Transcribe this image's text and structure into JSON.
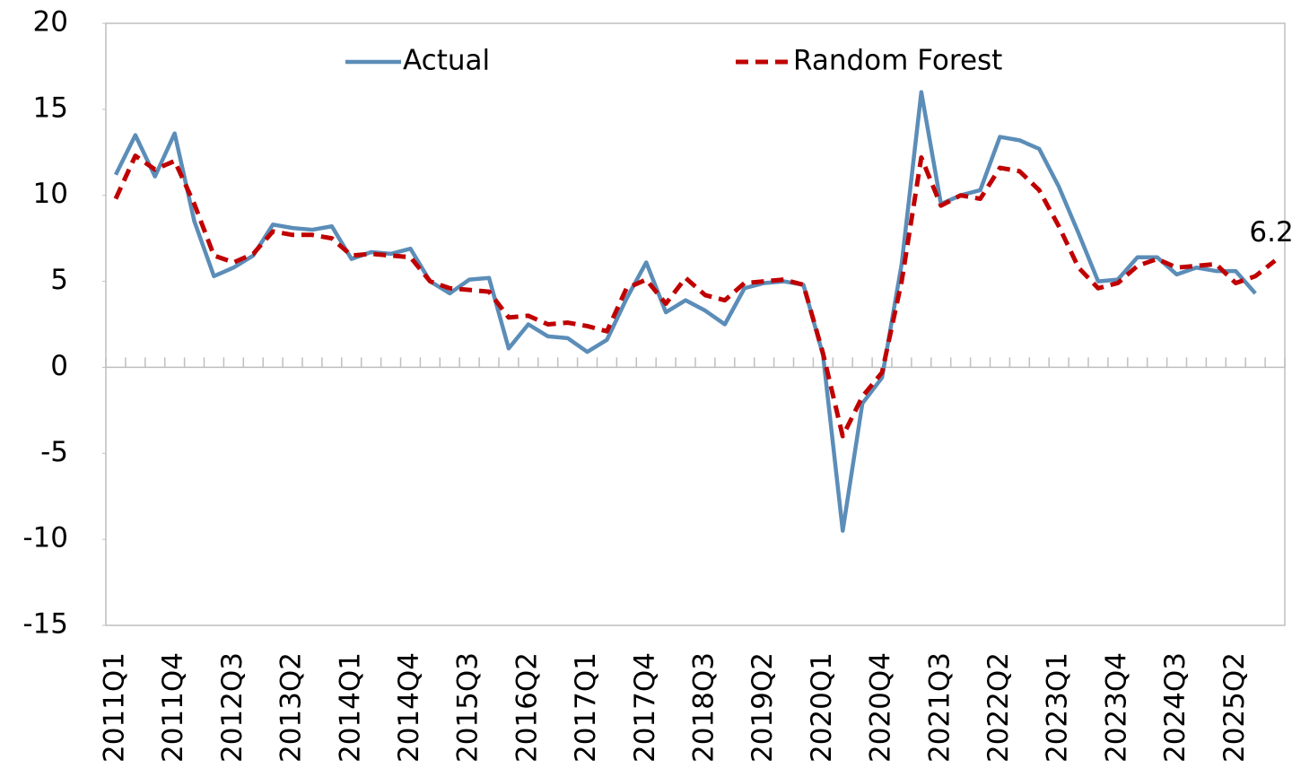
{
  "chart_data": {
    "type": "line",
    "categories": [
      "2011Q1",
      null,
      null,
      "2011Q4",
      null,
      null,
      "2012Q3",
      null,
      null,
      "2013Q2",
      null,
      null,
      "2014Q1",
      null,
      null,
      "2014Q4",
      null,
      null,
      "2015Q3",
      null,
      null,
      "2016Q2",
      null,
      null,
      "2017Q1",
      null,
      null,
      "2017Q4",
      null,
      null,
      "2018Q3",
      null,
      null,
      "2019Q2",
      null,
      null,
      "2020Q1",
      null,
      null,
      "2020Q4",
      null,
      null,
      "2021Q3",
      null,
      null,
      "2022Q2",
      null,
      null,
      "2023Q1",
      null,
      null,
      "2023Q4",
      null,
      null,
      "2024Q3",
      null,
      null,
      "2025Q2",
      null,
      null
    ],
    "series": [
      {
        "name": "Actual",
        "color": "#5b8db8",
        "dash": false,
        "values": [
          11.2,
          13.5,
          11.1,
          13.6,
          8.5,
          5.3,
          5.8,
          6.5,
          8.3,
          8.1,
          8.0,
          8.2,
          6.3,
          6.7,
          6.6,
          6.9,
          5.0,
          4.3,
          5.1,
          5.2,
          1.1,
          2.5,
          1.8,
          1.7,
          0.9,
          1.6,
          4.0,
          6.1,
          3.2,
          3.9,
          3.3,
          2.5,
          4.6,
          4.9,
          5.0,
          4.8,
          0.7,
          -9.5,
          -2.1,
          -0.6,
          6.0,
          16.0,
          9.5,
          10.0,
          10.3,
          13.4,
          13.2,
          12.7,
          10.5,
          7.8,
          5.0,
          5.1,
          6.4,
          6.4,
          5.4,
          5.8,
          5.6,
          5.6,
          4.3,
          null
        ]
      },
      {
        "name": "Random Forest",
        "color": "#c00000",
        "dash": true,
        "values": [
          9.8,
          12.3,
          11.5,
          12.0,
          9.5,
          6.5,
          6.1,
          6.6,
          7.9,
          7.7,
          7.7,
          7.5,
          6.5,
          6.6,
          6.5,
          6.4,
          5.0,
          4.6,
          4.5,
          4.4,
          2.9,
          3.0,
          2.5,
          2.6,
          2.4,
          2.1,
          4.6,
          5.1,
          3.7,
          5.2,
          4.2,
          3.9,
          4.9,
          5.0,
          5.1,
          4.8,
          0.8,
          -4.0,
          -1.7,
          -0.3,
          5.0,
          12.2,
          9.4,
          10.0,
          9.8,
          11.6,
          11.4,
          10.3,
          8.2,
          5.8,
          4.6,
          4.9,
          5.9,
          6.3,
          5.8,
          5.9,
          6.0,
          4.9,
          5.3,
          6.2
        ],
        "value_labels": [
          null,
          null,
          null,
          null,
          null,
          null,
          null,
          null,
          null,
          null,
          null,
          null,
          null,
          null,
          null,
          null,
          null,
          null,
          null,
          null,
          null,
          null,
          null,
          null,
          null,
          null,
          null,
          null,
          null,
          null,
          null,
          null,
          null,
          null,
          null,
          null,
          null,
          null,
          null,
          null,
          null,
          null,
          null,
          null,
          null,
          null,
          null,
          null,
          null,
          null,
          null,
          null,
          null,
          null,
          null,
          null,
          null,
          null,
          null,
          "6.2"
        ]
      }
    ],
    "ylim": [
      -15,
      20
    ],
    "yticks": [
      -15,
      -10,
      -5,
      0,
      5,
      10,
      15,
      20
    ],
    "grid": false,
    "legend": "top"
  }
}
